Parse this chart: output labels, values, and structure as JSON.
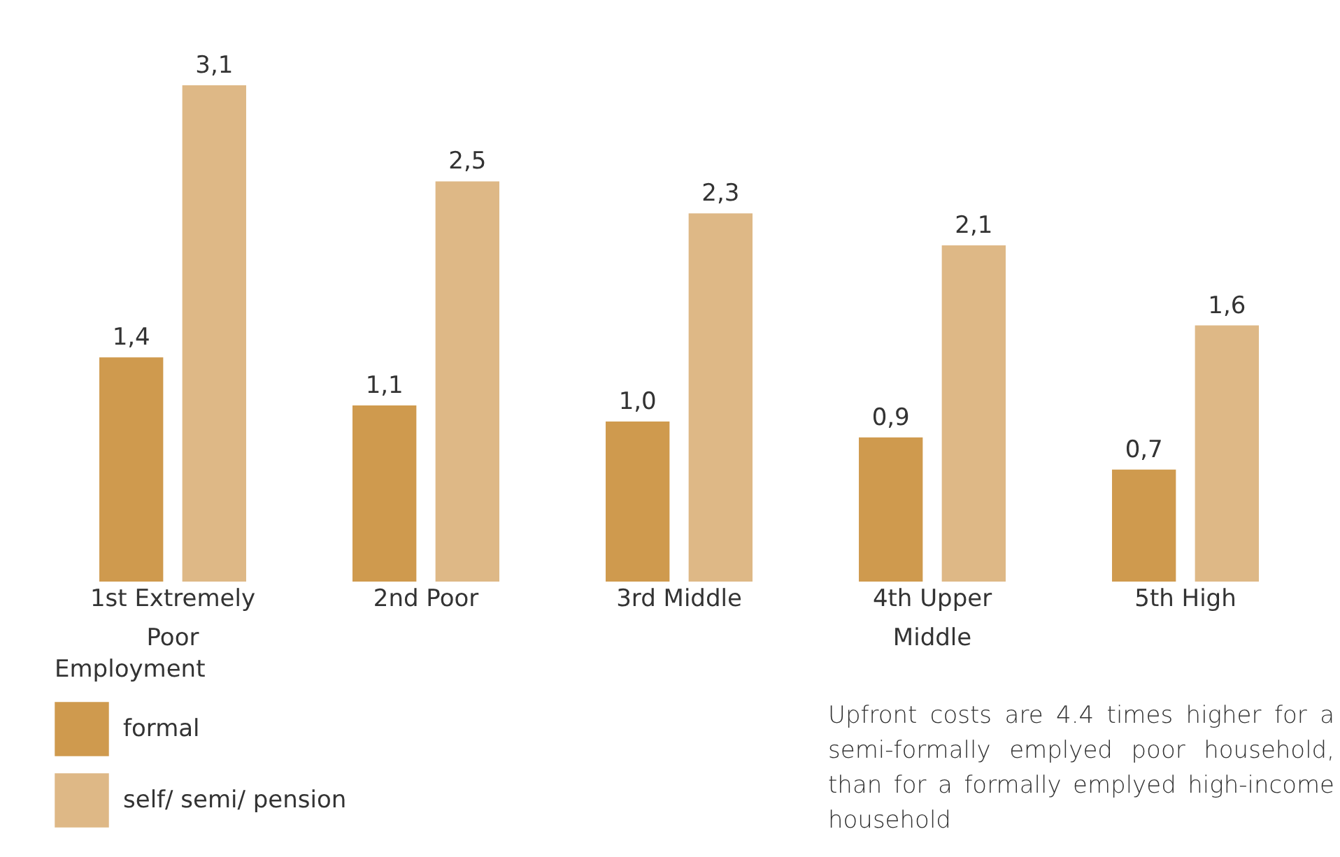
{
  "chart_data": {
    "type": "bar",
    "categories": [
      "1st Extremely Poor",
      "2nd Poor",
      "3rd Middle",
      "4th Upper Middle",
      "5th High"
    ],
    "series": [
      {
        "name": "formal",
        "color": "#cf9a4e",
        "values": [
          1.4,
          1.1,
          1.0,
          0.9,
          0.7
        ],
        "value_labels": [
          "1,4",
          "1,1",
          "1,0",
          "0,9",
          "0,7"
        ]
      },
      {
        "name": "self/ semi/ pension",
        "color": "#deb886",
        "values": [
          3.1,
          2.5,
          2.3,
          2.1,
          1.6
        ],
        "value_labels": [
          "3,1",
          "2,5",
          "2,3",
          "2,1",
          "1,6"
        ]
      }
    ],
    "legend_title": "Employment",
    "legend": "bottom left",
    "grid": false,
    "annotations": [
      "Upfront costs are 4.4 times higher for a semi-formally emplyed poor household, than for a formally emplyed high-income household"
    ]
  }
}
